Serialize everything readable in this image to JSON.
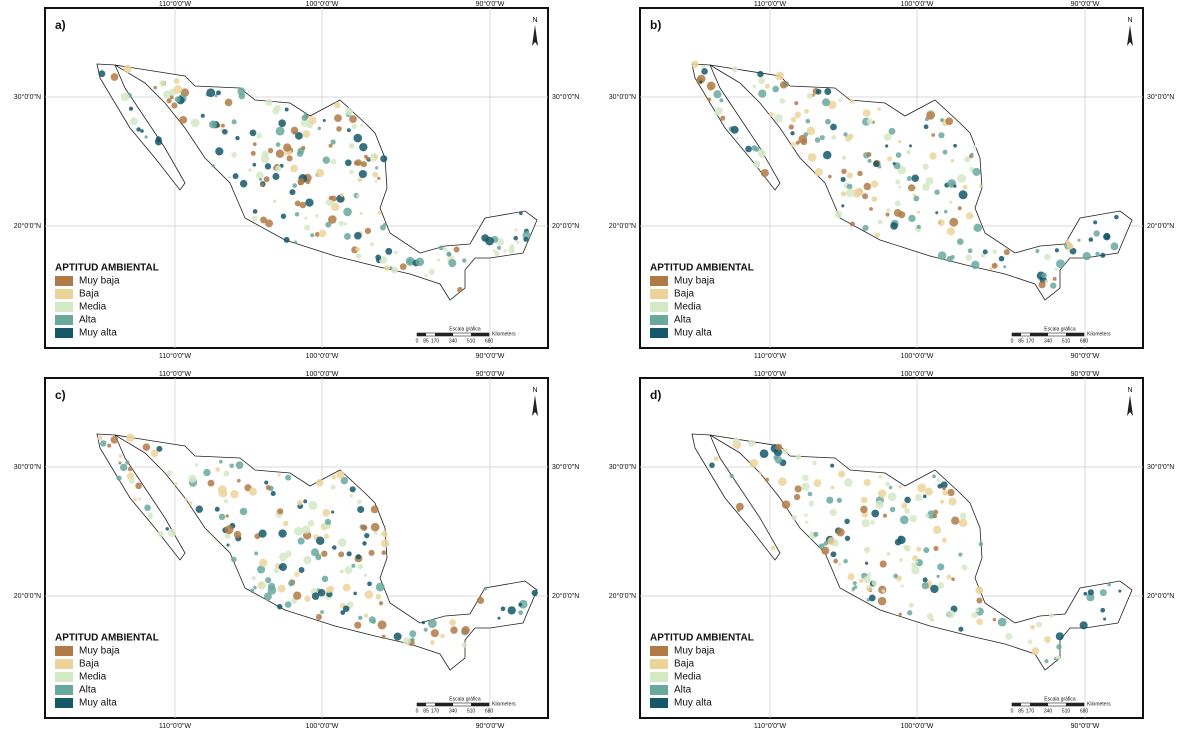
{
  "panels": [
    {
      "label": "a)"
    },
    {
      "label": "b)"
    },
    {
      "label": "c)"
    },
    {
      "label": "d)"
    }
  ],
  "longitudes": [
    "110°0'0\"W",
    "100°0'0\"W",
    "90°0'0\"W"
  ],
  "latitudes": [
    "30°0'0\"N",
    "20°0'0\"N"
  ],
  "north": "N",
  "legend": {
    "title": "APTITUD AMBIENTAL",
    "items": [
      {
        "label": "Muy baja",
        "color": "#b07a45"
      },
      {
        "label": "Baja",
        "color": "#ecd39a"
      },
      {
        "label": "Media",
        "color": "#d3e9c4"
      },
      {
        "label": "Alta",
        "color": "#69a89d"
      },
      {
        "label": "Muy alta",
        "color": "#14586a"
      }
    ]
  },
  "scale": {
    "title": "Escala gráfica",
    "ticks": [
      "0",
      "85",
      "170",
      "340",
      "510",
      "680"
    ],
    "unit": "Kilometers"
  }
}
